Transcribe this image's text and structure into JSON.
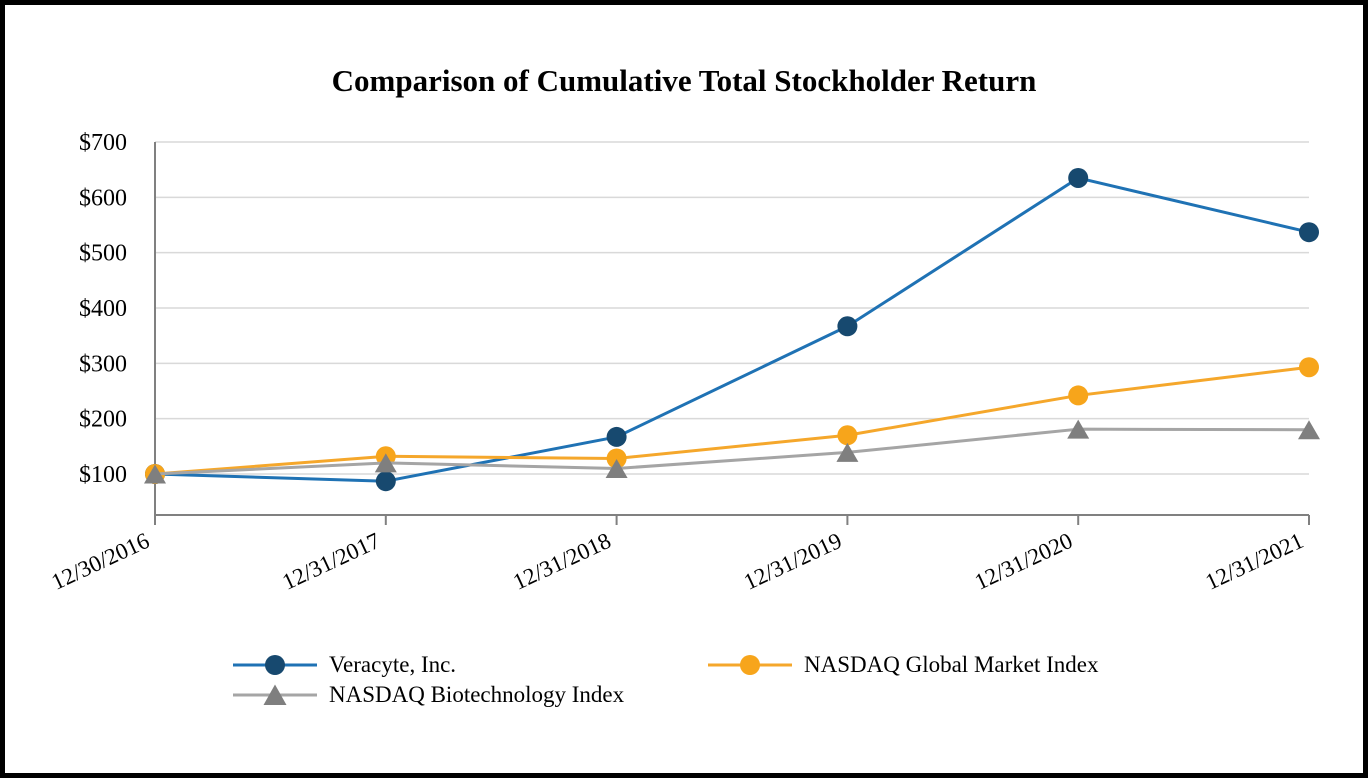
{
  "chart_data": {
    "type": "line",
    "title": "Comparison of Cumulative Total Stockholder Return",
    "categories": [
      "12/30/2016",
      "12/31/2017",
      "12/31/2018",
      "12/31/2019",
      "12/31/2020",
      "12/31/2021"
    ],
    "series": [
      {
        "name": "Veracyte, Inc.",
        "marker": "circle",
        "line_color": "#1F72B4",
        "marker_color": "#17496F",
        "values": [
          100,
          87,
          167,
          367,
          635,
          537
        ]
      },
      {
        "name": "NASDAQ Global Market Index",
        "marker": "circle",
        "line_color": "#F5A72B",
        "marker_color": "#F7A51B",
        "values": [
          100,
          132,
          128,
          170,
          242,
          293
        ]
      },
      {
        "name": "NASDAQ Biotechnology Index",
        "marker": "triangle",
        "line_color": "#A5A5A5",
        "marker_color": "#7F7F7F",
        "values": [
          100,
          120,
          110,
          139,
          181,
          180
        ]
      }
    ],
    "y_axis": {
      "tick_labels": [
        "$100",
        "$200",
        "$300",
        "$400",
        "$500",
        "$600",
        "$700"
      ],
      "tick_values": [
        100,
        200,
        300,
        400,
        500,
        600,
        700
      ]
    },
    "x_axis": {
      "label_rotation_deg": -25
    },
    "ylim": [
      26,
      700
    ],
    "grid": true,
    "legend_position": "bottom",
    "colors": {
      "gridline": "#D9D9D9",
      "axis": "#808080",
      "text": "#000000",
      "background": "#FFFFFF",
      "border": "#000000"
    }
  }
}
